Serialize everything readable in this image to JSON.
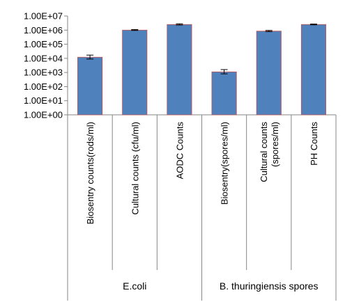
{
  "chart_data": {
    "type": "bar",
    "y_scale": "log",
    "ylim": [
      1,
      10000000
    ],
    "yticks": [
      "1.00E+00",
      "1.00E+01",
      "1.00E+02",
      "1.00E+03",
      "1.00E+04",
      "1.00E+05",
      "1.00E+06",
      "1.00E+07"
    ],
    "categories": [
      "Biosentry counts(rods/ml)",
      "Cultural counts (cfu/ml)",
      "AODC Counts",
      "Biosentry(spores/ml)",
      "Cultural counts (spores/ml)",
      "PH Counts"
    ],
    "values": [
      12000,
      1000000,
      2500000,
      1100,
      850000,
      2500000
    ],
    "error_high": [
      17000,
      1100000,
      2800000,
      1600,
      950000,
      2700000
    ],
    "error_low": [
      9000,
      950000,
      2300000,
      800,
      780000,
      2350000
    ],
    "groups": [
      {
        "label": "E.coli",
        "span": 3
      },
      {
        "label": "B. thuringiensis spores",
        "span": 3
      }
    ],
    "bar_color": "#4F81BD",
    "bar_border_color": "#C0504D",
    "grid": false
  }
}
